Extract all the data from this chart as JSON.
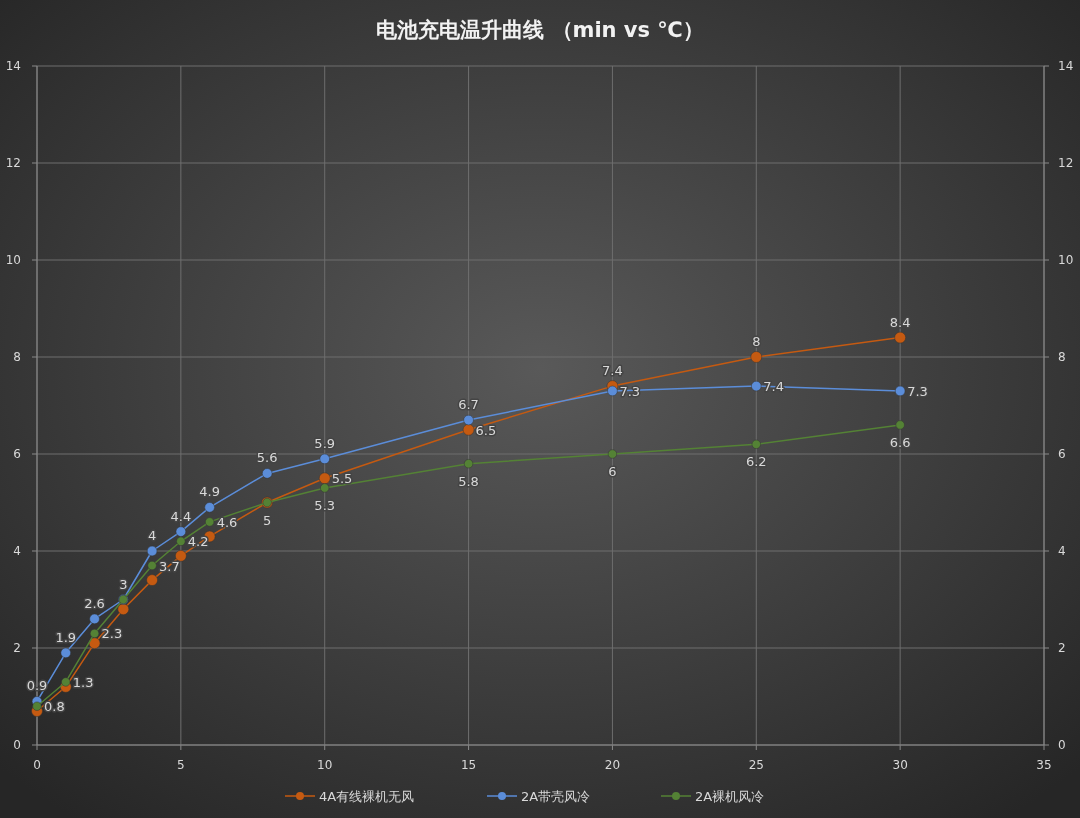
{
  "chart_data": {
    "type": "line",
    "title": "电池充电温升曲线 （min vs ℃）",
    "x": [
      0,
      1,
      2,
      3,
      4,
      5,
      6,
      8,
      10,
      15,
      20,
      25,
      30
    ],
    "xlim": [
      0,
      35
    ],
    "xticks": [
      0,
      5,
      10,
      15,
      20,
      25,
      30,
      35
    ],
    "ylim": [
      0,
      14
    ],
    "yticks": [
      0,
      2,
      4,
      6,
      8,
      10,
      12,
      14
    ],
    "y2lim": [
      0,
      14
    ],
    "y2ticks": [
      0,
      2,
      4,
      6,
      8,
      10,
      12,
      14
    ],
    "grid": true,
    "legend": "bottom",
    "marker": "circle",
    "line_style": "solid",
    "series": [
      {
        "name": "4A有线裸机无风",
        "color": "#c55a11",
        "values": [
          0.7,
          1.2,
          2.1,
          2.8,
          3.4,
          3.9,
          4.3,
          5.0,
          5.5,
          6.5,
          7.4,
          8.0,
          8.4
        ],
        "value_labels": [
          null,
          null,
          null,
          null,
          null,
          null,
          null,
          null,
          "5.5",
          "6.5",
          "7.4",
          "8",
          "8.4"
        ]
      },
      {
        "name": "2A带壳风冷",
        "color": "#5b8dd9",
        "values": [
          0.9,
          1.9,
          2.6,
          3.0,
          4.0,
          4.4,
          4.9,
          5.6,
          5.9,
          6.7,
          7.3,
          7.4,
          7.3
        ],
        "value_labels": [
          "0.9",
          "1.9",
          "2.6",
          "3",
          "4",
          "4.4",
          "4.9",
          "5.6",
          "5.9",
          "6.7",
          "7.3",
          "7.4",
          "7.3"
        ]
      },
      {
        "name": "2A裸机风冷",
        "color": "#548235",
        "values": [
          0.8,
          1.3,
          2.3,
          3.0,
          3.7,
          4.2,
          4.6,
          5.0,
          5.3,
          5.8,
          6.0,
          6.2,
          6.6
        ],
        "value_labels": [
          "0.8",
          "1.3",
          "2.3",
          null,
          "3.7",
          "4.2",
          "4.6",
          "5",
          "5.3",
          "5.8",
          "6",
          "6.2",
          "6.6"
        ]
      }
    ]
  }
}
